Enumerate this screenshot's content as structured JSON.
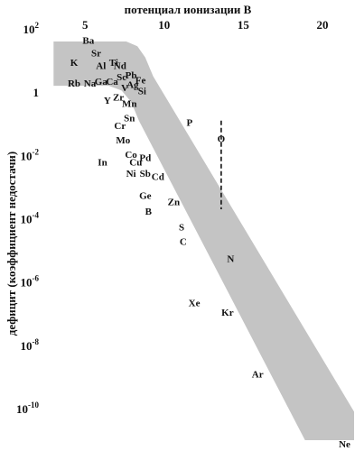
{
  "chart_data": {
    "type": "scatter",
    "xlabel": "потенциал ионизации  В",
    "ylabel": "дефицит (коэффициент недостачи)",
    "x_axis_position": "top",
    "xlim": [
      2.3,
      22.0
    ],
    "ylim_log10": [
      -11,
      2
    ],
    "y_scale": "log",
    "grid": false,
    "x_ticks": [
      {
        "value": 5,
        "label": "5"
      },
      {
        "value": 10,
        "label": "10"
      },
      {
        "value": 15,
        "label": "15"
      },
      {
        "value": 20,
        "label": "20"
      }
    ],
    "y_ticks": [
      {
        "exp": 2,
        "base": "10",
        "sup": "2"
      },
      {
        "exp": 0,
        "base": "1",
        "sup": ""
      },
      {
        "exp": -2,
        "base": "10",
        "sup": "-2"
      },
      {
        "exp": -4,
        "base": "10",
        "sup": "-4"
      },
      {
        "exp": -6,
        "base": "10",
        "sup": "-6"
      },
      {
        "exp": -8,
        "base": "10",
        "sup": "-8"
      },
      {
        "exp": -10,
        "base": "10",
        "sup": "-10"
      }
    ],
    "band": {
      "color": "#c4c4c4",
      "upper": [
        [
          3.0,
          1.6
        ],
        [
          7.6,
          1.6
        ],
        [
          8.3,
          1.45
        ],
        [
          8.8,
          1.1
        ],
        [
          9.3,
          0.5
        ],
        [
          22.0,
          -10.1
        ]
      ],
      "lower": [
        [
          3.0,
          0.2
        ],
        [
          6.5,
          0.2
        ],
        [
          7.3,
          0.05
        ],
        [
          7.9,
          -0.3
        ],
        [
          8.4,
          -0.9
        ],
        [
          18.9,
          -11.0
        ],
        [
          22.0,
          -11.0
        ]
      ]
    },
    "oxygen_marker": {
      "x": 13.6,
      "y_top": -0.9,
      "y_bottom": -3.7,
      "style": "dashed"
    },
    "points": [
      {
        "label": "Ba",
        "x": 5.2,
        "y": 1.6
      },
      {
        "label": "Sr",
        "x": 5.7,
        "y": 1.2
      },
      {
        "label": "K",
        "x": 4.3,
        "y": 0.9
      },
      {
        "label": "Al",
        "x": 6.0,
        "y": 0.8
      },
      {
        "label": "Ti",
        "x": 6.8,
        "y": 0.9
      },
      {
        "label": "Nd",
        "x": 7.2,
        "y": 0.8
      },
      {
        "label": "Sc",
        "x": 7.3,
        "y": 0.45
      },
      {
        "label": "Pb",
        "x": 7.9,
        "y": 0.5
      },
      {
        "label": "Fe",
        "x": 8.5,
        "y": 0.35
      },
      {
        "label": "Ga",
        "x": 6.0,
        "y": 0.3
      },
      {
        "label": "Ca",
        "x": 6.7,
        "y": 0.3
      },
      {
        "label": "V",
        "x": 7.5,
        "y": 0.1
      },
      {
        "label": "Ag",
        "x": 8.0,
        "y": 0.2
      },
      {
        "label": "Si",
        "x": 8.6,
        "y": 0.0
      },
      {
        "label": "Rb",
        "x": 4.3,
        "y": 0.25
      },
      {
        "label": "Na",
        "x": 5.3,
        "y": 0.25
      },
      {
        "label": "Y",
        "x": 6.4,
        "y": -0.3
      },
      {
        "label": "Zr",
        "x": 7.1,
        "y": -0.2
      },
      {
        "label": "Mn",
        "x": 7.8,
        "y": -0.4
      },
      {
        "label": "Sn",
        "x": 7.8,
        "y": -0.85
      },
      {
        "label": "P",
        "x": 11.6,
        "y": -1.0
      },
      {
        "label": "O",
        "x": 13.6,
        "y": -1.5
      },
      {
        "label": "Cr",
        "x": 7.2,
        "y": -1.1
      },
      {
        "label": "Mo",
        "x": 7.4,
        "y": -1.55
      },
      {
        "label": "Co",
        "x": 7.9,
        "y": -2.0
      },
      {
        "label": "Pd",
        "x": 8.8,
        "y": -2.1
      },
      {
        "label": "In",
        "x": 6.1,
        "y": -2.25
      },
      {
        "label": "Cu",
        "x": 8.2,
        "y": -2.25
      },
      {
        "label": "Ni",
        "x": 7.9,
        "y": -2.6
      },
      {
        "label": "Sb",
        "x": 8.8,
        "y": -2.6
      },
      {
        "label": "Cd",
        "x": 9.6,
        "y": -2.7
      },
      {
        "label": "Ge",
        "x": 8.8,
        "y": -3.3
      },
      {
        "label": "Zn",
        "x": 10.6,
        "y": -3.5
      },
      {
        "label": "B",
        "x": 9.0,
        "y": -3.8
      },
      {
        "label": "S",
        "x": 11.1,
        "y": -4.3
      },
      {
        "label": "C",
        "x": 11.2,
        "y": -4.75
      },
      {
        "label": "N",
        "x": 14.2,
        "y": -5.3
      },
      {
        "label": "Xe",
        "x": 11.9,
        "y": -6.7
      },
      {
        "label": "Kr",
        "x": 14.0,
        "y": -7.0
      },
      {
        "label": "Ar",
        "x": 15.9,
        "y": -8.95
      },
      {
        "label": "Ne",
        "x": 21.4,
        "y": -11.15
      }
    ]
  }
}
